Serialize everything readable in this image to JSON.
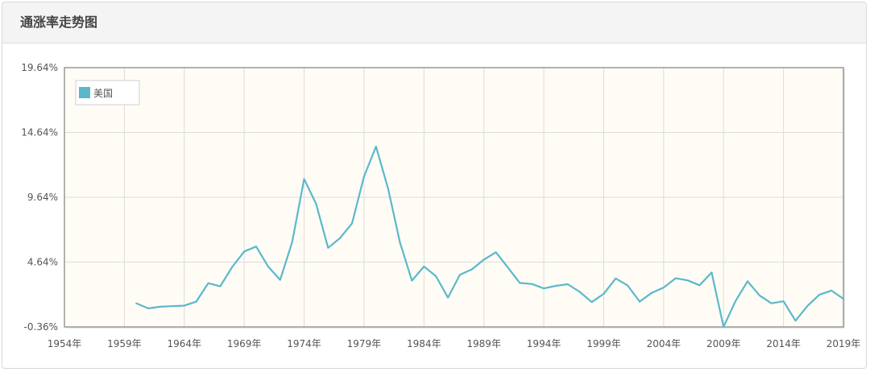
{
  "panel": {
    "title": "通涨率走势图"
  },
  "colors": {
    "plot_background": "#fffcf5",
    "grid": "#dcdcdc",
    "axis": "#999999",
    "series": "#5bb8cb",
    "text": "#555555"
  },
  "chart_data": {
    "type": "line",
    "title": "",
    "xlabel": "",
    "ylabel": "",
    "xlim": [
      1954,
      2019
    ],
    "ylim": [
      -0.36,
      19.64
    ],
    "x_ticks": [
      1954,
      1959,
      1964,
      1969,
      1974,
      1979,
      1984,
      1989,
      1994,
      1999,
      2004,
      2009,
      2014,
      2019
    ],
    "x_tick_labels": [
      "1954年",
      "1959年",
      "1964年",
      "1969年",
      "1974年",
      "1979年",
      "1984年",
      "1989年",
      "1994年",
      "1999年",
      "2004年",
      "2009年",
      "2014年",
      "2019年"
    ],
    "y_ticks": [
      -0.36,
      4.64,
      9.64,
      14.64,
      19.64
    ],
    "y_tick_labels": [
      "-0.36%",
      "4.64%",
      "9.64%",
      "14.64%",
      "19.64%"
    ],
    "grid": true,
    "legend_position": "top-left",
    "series": [
      {
        "name": "美国",
        "x": [
          1960,
          1961,
          1962,
          1963,
          1964,
          1965,
          1966,
          1967,
          1968,
          1969,
          1970,
          1971,
          1972,
          1973,
          1974,
          1975,
          1976,
          1977,
          1978,
          1979,
          1980,
          1981,
          1982,
          1983,
          1984,
          1985,
          1986,
          1987,
          1988,
          1989,
          1990,
          1991,
          1992,
          1993,
          1994,
          1995,
          1996,
          1997,
          1998,
          1999,
          2000,
          2001,
          2002,
          2003,
          2004,
          2005,
          2006,
          2007,
          2008,
          2009,
          2010,
          2011,
          2012,
          2013,
          2014,
          2015,
          2016,
          2017,
          2018,
          2019
        ],
        "values": [
          1.46,
          1.07,
          1.2,
          1.24,
          1.28,
          1.59,
          3.01,
          2.77,
          4.27,
          5.46,
          5.84,
          4.29,
          3.27,
          6.18,
          11.05,
          9.14,
          5.74,
          6.5,
          7.63,
          11.25,
          13.55,
          10.33,
          6.13,
          3.21,
          4.3,
          3.55,
          1.9,
          3.66,
          4.08,
          4.83,
          5.4,
          4.23,
          3.03,
          2.95,
          2.61,
          2.81,
          2.93,
          2.34,
          1.55,
          2.19,
          3.38,
          2.83,
          1.59,
          2.27,
          2.68,
          3.39,
          3.23,
          2.85,
          3.84,
          -0.36,
          1.64,
          3.16,
          2.07,
          1.46,
          1.62,
          0.12,
          1.26,
          2.13,
          2.44,
          1.81
        ]
      }
    ]
  }
}
